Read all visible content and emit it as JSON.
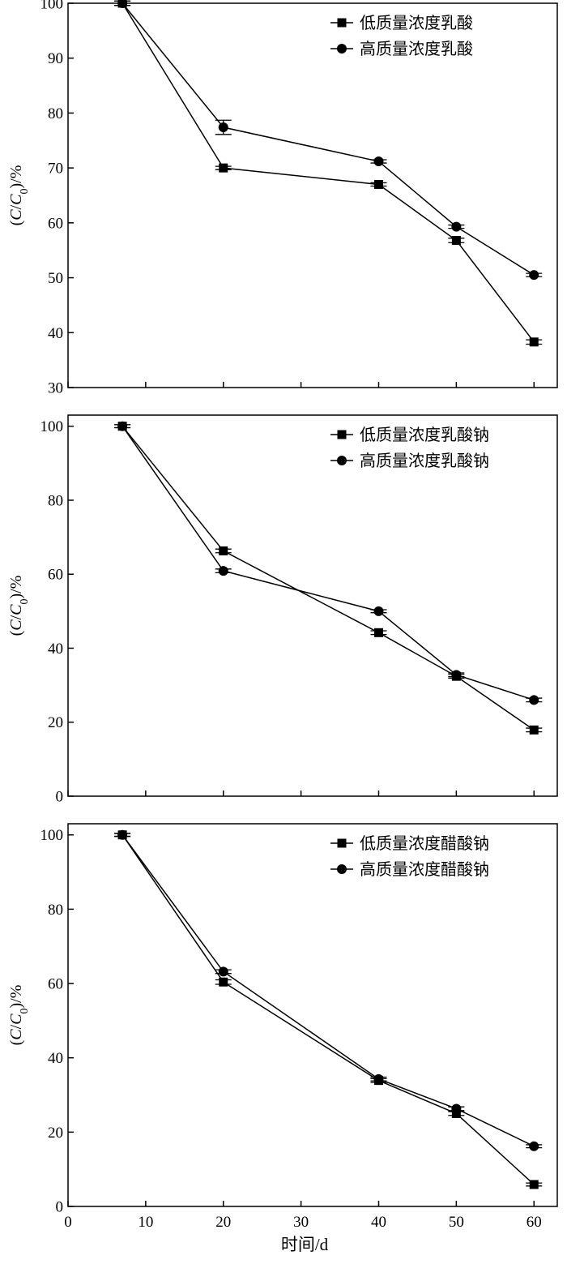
{
  "chart_data": [
    {
      "type": "line",
      "ylabel": "(C/C0)/%",
      "xlabel": "",
      "xlim": [
        0,
        63
      ],
      "ylim": [
        30,
        100
      ],
      "xticks": [
        0,
        10,
        20,
        30,
        40,
        50,
        60
      ],
      "yticks": [
        30,
        40,
        50,
        60,
        70,
        80,
        90,
        100
      ],
      "show_x_tick_labels": false,
      "legend": "top-right",
      "series": [
        {
          "name": "低质量浓度乳酸",
          "marker": "square",
          "x": [
            7,
            20,
            40,
            50,
            60
          ],
          "y": [
            100,
            70,
            67,
            56.8,
            38.3
          ],
          "err": [
            0.4,
            0.3,
            0.3,
            0.4,
            0.4
          ]
        },
        {
          "name": "高质量浓度乳酸",
          "marker": "circle",
          "x": [
            7,
            20,
            40,
            50,
            60
          ],
          "y": [
            100,
            77.4,
            71.2,
            59.3,
            50.5
          ],
          "err": [
            0.4,
            1.3,
            0.3,
            0.3,
            0.3
          ]
        }
      ]
    },
    {
      "type": "line",
      "ylabel": "(C/C0)/%",
      "xlabel": "",
      "xlim": [
        0,
        63
      ],
      "ylim": [
        0,
        103
      ],
      "xticks": [
        0,
        10,
        20,
        30,
        40,
        50,
        60
      ],
      "yticks": [
        0,
        20,
        40,
        60,
        80,
        100
      ],
      "show_x_tick_labels": false,
      "legend": "top-right",
      "series": [
        {
          "name": "低质量浓度乳酸钠",
          "marker": "square",
          "x": [
            7,
            20,
            40,
            50,
            60
          ],
          "y": [
            100,
            66.3,
            44.2,
            32.4,
            17.9
          ],
          "err": [
            0.4,
            0.5,
            0.5,
            0.5,
            0.5
          ]
        },
        {
          "name": "高质量浓度乳酸钠",
          "marker": "circle",
          "x": [
            7,
            20,
            40,
            50,
            60
          ],
          "y": [
            100,
            60.9,
            50,
            32.8,
            26
          ],
          "err": [
            0.4,
            0.5,
            0.4,
            0.5,
            0.5
          ]
        }
      ]
    },
    {
      "type": "line",
      "ylabel": "(C/C0)/%",
      "xlabel": "时间/d",
      "xlim": [
        0,
        63
      ],
      "ylim": [
        0,
        103
      ],
      "xticks": [
        0,
        10,
        20,
        30,
        40,
        50,
        60
      ],
      "yticks": [
        0,
        20,
        40,
        60,
        80,
        100
      ],
      "show_x_tick_labels": true,
      "legend": "top-right",
      "series": [
        {
          "name": "低质量浓度醋酸钠",
          "marker": "square",
          "x": [
            7,
            20,
            40,
            50,
            60
          ],
          "y": [
            100,
            60.4,
            33.9,
            25,
            5.9
          ],
          "err": [
            0.4,
            0.6,
            0.5,
            0.5,
            0.4
          ]
        },
        {
          "name": "高质量浓度醋酸钠",
          "marker": "circle",
          "x": [
            7,
            20,
            40,
            50,
            60
          ],
          "y": [
            100,
            63.2,
            34.3,
            26.3,
            16.2
          ],
          "err": [
            0.4,
            0.5,
            0.5,
            0.5,
            0.4
          ]
        }
      ]
    }
  ]
}
